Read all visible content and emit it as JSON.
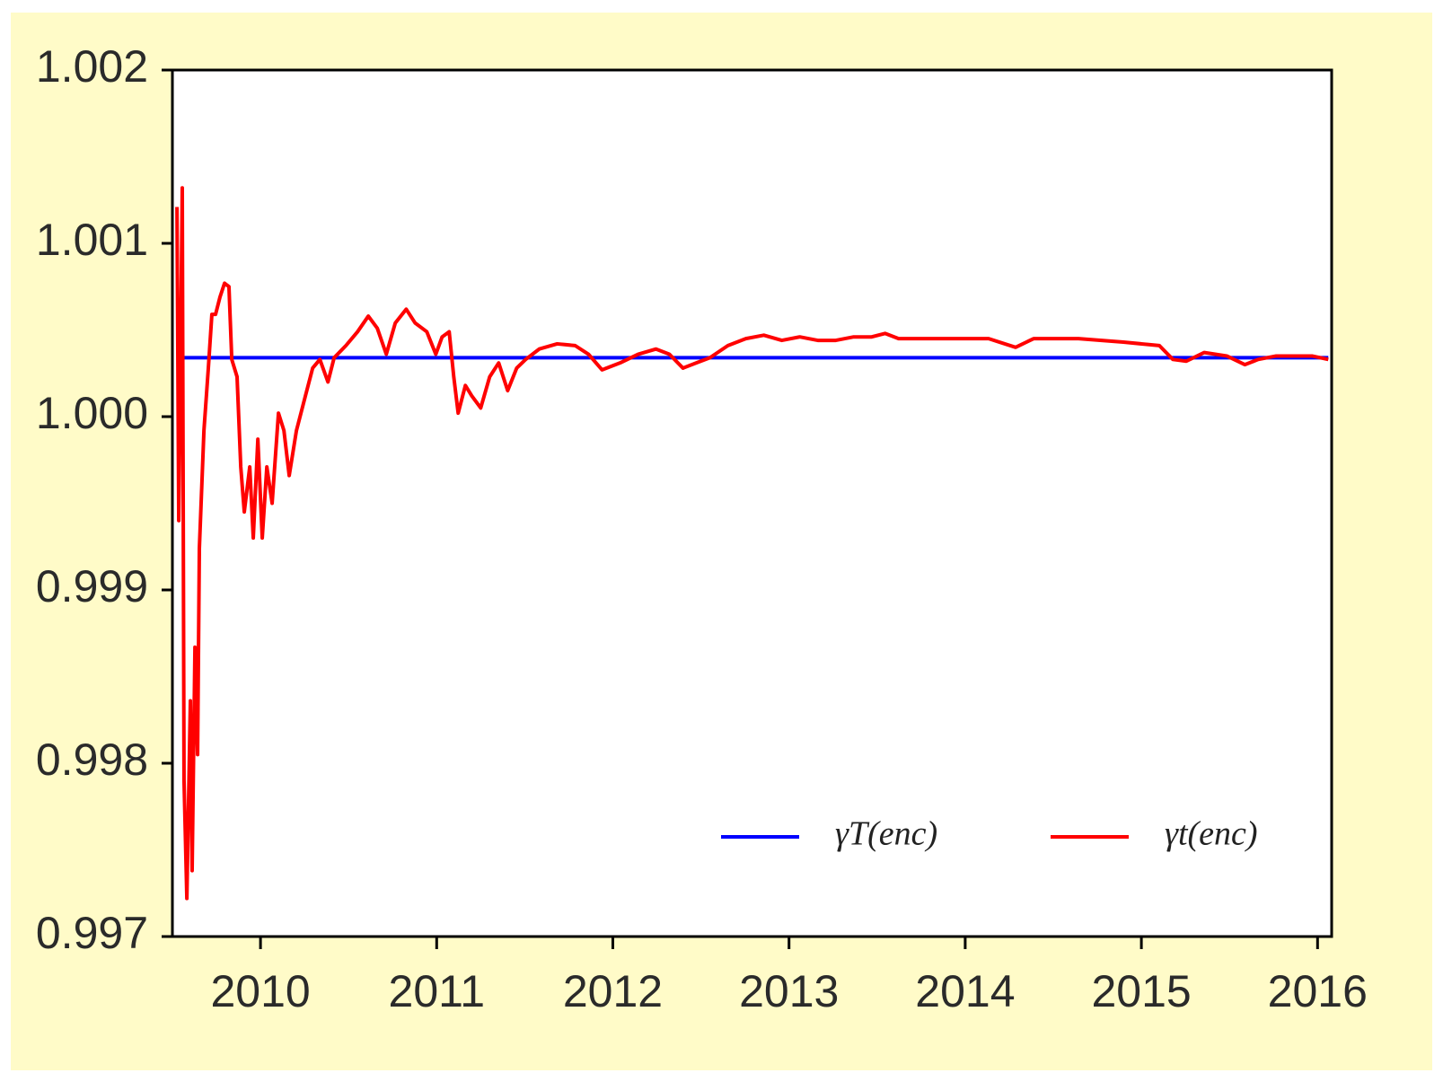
{
  "chart_data": {
    "type": "line",
    "x": [],
    "series": [
      {
        "name": "γT(enc)",
        "color": "#0000ff",
        "x": [
          2009.526,
          2016.061
        ],
        "values": [
          1.00034,
          1.00034
        ]
      },
      {
        "name": "γt(enc)",
        "color": "#ff0000",
        "x": [
          2009.526,
          2009.536,
          2009.556,
          2009.566,
          2009.582,
          2009.602,
          2009.612,
          2009.628,
          2009.643,
          2009.653,
          2009.679,
          2009.704,
          2009.724,
          2009.745,
          2009.77,
          2009.796,
          2009.821,
          2009.837,
          2009.867,
          2009.888,
          2009.908,
          2009.939,
          2009.959,
          2009.985,
          2010.01,
          2010.036,
          2010.066,
          2010.102,
          2010.133,
          2010.163,
          2010.204,
          2010.255,
          2010.296,
          2010.337,
          2010.383,
          2010.418,
          2010.485,
          2010.551,
          2010.612,
          2010.663,
          2010.714,
          2010.765,
          2010.827,
          2010.878,
          2010.944,
          2010.995,
          2011.031,
          2011.071,
          2011.097,
          2011.122,
          2011.163,
          2011.199,
          2011.25,
          2011.301,
          2011.352,
          2011.403,
          2011.454,
          2011.505,
          2011.582,
          2011.684,
          2011.786,
          2011.862,
          2011.939,
          2012.041,
          2012.143,
          2012.245,
          2012.321,
          2012.398,
          2012.474,
          2012.551,
          2012.653,
          2012.755,
          2012.857,
          2012.959,
          2013.061,
          2013.163,
          2013.265,
          2013.367,
          2013.469,
          2013.546,
          2013.622,
          2013.878,
          2014.133,
          2014.286,
          2014.388,
          2014.643,
          2014.898,
          2015.102,
          2015.179,
          2015.255,
          2015.357,
          2015.485,
          2015.587,
          2015.663,
          2015.765,
          2015.867,
          2015.969,
          2016.061
        ],
        "values": [
          1.00121,
          0.9994,
          1.00132,
          0.9979,
          0.99722,
          0.99836,
          0.99738,
          0.99867,
          0.99805,
          0.99924,
          0.99992,
          1.00028,
          1.00059,
          1.00059,
          1.00069,
          1.00077,
          1.00075,
          1.00033,
          1.00023,
          0.99971,
          0.99945,
          0.99971,
          0.9993,
          0.99987,
          0.9993,
          0.99971,
          0.9995,
          1.00002,
          0.99992,
          0.99966,
          0.99992,
          1.00012,
          1.00028,
          1.00033,
          1.0002,
          1.00034,
          1.00041,
          1.00049,
          1.00058,
          1.00051,
          1.00036,
          1.00054,
          1.00062,
          1.00054,
          1.00049,
          1.00036,
          1.00046,
          1.00049,
          1.00023,
          1.00002,
          1.00018,
          1.00012,
          1.00005,
          1.00023,
          1.00031,
          1.00015,
          1.00028,
          1.00033,
          1.00039,
          1.00042,
          1.00041,
          1.00036,
          1.00027,
          1.00031,
          1.00036,
          1.00039,
          1.00036,
          1.00028,
          1.00031,
          1.00034,
          1.00041,
          1.00045,
          1.00047,
          1.00044,
          1.00046,
          1.00044,
          1.00044,
          1.00046,
          1.00046,
          1.00048,
          1.00045,
          1.00045,
          1.00045,
          1.0004,
          1.00045,
          1.00045,
          1.00043,
          1.00041,
          1.00033,
          1.00032,
          1.00037,
          1.00035,
          1.0003,
          1.00033,
          1.00035,
          1.00035,
          1.00035,
          1.00033
        ]
      }
    ],
    "xlim": [
      2009.5,
      2016.08
    ],
    "xticks": [
      2010,
      2011,
      2012,
      2013,
      2014,
      2015,
      2016
    ],
    "ylim": [
      0.997,
      1.002
    ],
    "yticks": [
      0.997,
      0.998,
      0.999,
      {
        "value": 1,
        "label": "1.000"
      },
      1.001,
      1.002
    ],
    "legend": "lower right",
    "grid": false
  }
}
